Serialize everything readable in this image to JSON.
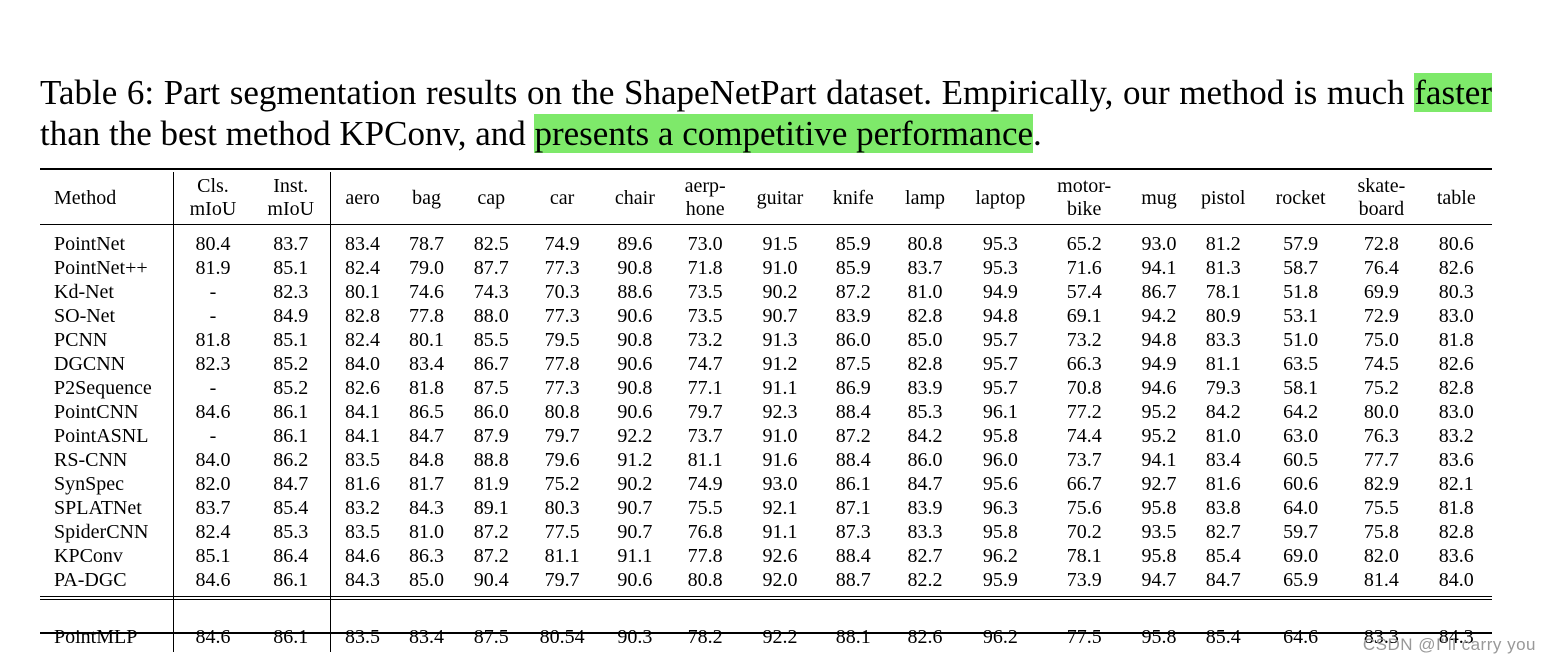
{
  "caption": {
    "part1": "Table 6: Part segmentation results on the ShapeNetPart dataset. Empirically, our method is much ",
    "highlight1": "faster",
    "part2": " than the best method KPConv, and ",
    "highlight2": "presents a competitive performance",
    "part3": "."
  },
  "colors": {
    "highlight": "#7ee96a",
    "watermark": "#999999"
  },
  "table": {
    "headers": {
      "method": "Method",
      "cls_line1": "Cls.",
      "cls_line2": "mIoU",
      "inst_line1": "Inst.",
      "inst_line2": "mIoU",
      "aero": "aero",
      "bag": "bag",
      "cap": "cap",
      "car": "car",
      "chair": "chair",
      "earphone_line1": "aerp-",
      "earphone_line2": "hone",
      "guitar": "guitar",
      "knife": "knife",
      "lamp": "lamp",
      "laptop": "laptop",
      "motorbike_line1": "motor-",
      "motorbike_line2": "bike",
      "mug": "mug",
      "pistol": "pistol",
      "rocket": "rocket",
      "skateboard_line1": "skate-",
      "skateboard_line2": "board",
      "table": "table"
    },
    "rows": [
      [
        "PointNet",
        "80.4",
        "83.7",
        "83.4",
        "78.7",
        "82.5",
        "74.9",
        "89.6",
        "73.0",
        "91.5",
        "85.9",
        "80.8",
        "95.3",
        "65.2",
        "93.0",
        "81.2",
        "57.9",
        "72.8",
        "80.6"
      ],
      [
        "PointNet++",
        "81.9",
        "85.1",
        "82.4",
        "79.0",
        "87.7",
        "77.3",
        "90.8",
        "71.8",
        "91.0",
        "85.9",
        "83.7",
        "95.3",
        "71.6",
        "94.1",
        "81.3",
        "58.7",
        "76.4",
        "82.6"
      ],
      [
        "Kd-Net",
        "-",
        "82.3",
        "80.1",
        "74.6",
        "74.3",
        "70.3",
        "88.6",
        "73.5",
        "90.2",
        "87.2",
        "81.0",
        "94.9",
        "57.4",
        "86.7",
        "78.1",
        "51.8",
        "69.9",
        "80.3"
      ],
      [
        "SO-Net",
        "-",
        "84.9",
        "82.8",
        "77.8",
        "88.0",
        "77.3",
        "90.6",
        "73.5",
        "90.7",
        "83.9",
        "82.8",
        "94.8",
        "69.1",
        "94.2",
        "80.9",
        "53.1",
        "72.9",
        "83.0"
      ],
      [
        "PCNN",
        "81.8",
        "85.1",
        "82.4",
        "80.1",
        "85.5",
        "79.5",
        "90.8",
        "73.2",
        "91.3",
        "86.0",
        "85.0",
        "95.7",
        "73.2",
        "94.8",
        "83.3",
        "51.0",
        "75.0",
        "81.8"
      ],
      [
        "DGCNN",
        "82.3",
        "85.2",
        "84.0",
        "83.4",
        "86.7",
        "77.8",
        "90.6",
        "74.7",
        "91.2",
        "87.5",
        "82.8",
        "95.7",
        "66.3",
        "94.9",
        "81.1",
        "63.5",
        "74.5",
        "82.6"
      ],
      [
        "P2Sequence",
        "-",
        "85.2",
        "82.6",
        "81.8",
        "87.5",
        "77.3",
        "90.8",
        "77.1",
        "91.1",
        "86.9",
        "83.9",
        "95.7",
        "70.8",
        "94.6",
        "79.3",
        "58.1",
        "75.2",
        "82.8"
      ],
      [
        "PointCNN",
        "84.6",
        "86.1",
        "84.1",
        "86.5",
        "86.0",
        "80.8",
        "90.6",
        "79.7",
        "92.3",
        "88.4",
        "85.3",
        "96.1",
        "77.2",
        "95.2",
        "84.2",
        "64.2",
        "80.0",
        "83.0"
      ],
      [
        "PointASNL",
        "-",
        "86.1",
        "84.1",
        "84.7",
        "87.9",
        "79.7",
        "92.2",
        "73.7",
        "91.0",
        "87.2",
        "84.2",
        "95.8",
        "74.4",
        "95.2",
        "81.0",
        "63.0",
        "76.3",
        "83.2"
      ],
      [
        "RS-CNN",
        "84.0",
        "86.2",
        "83.5",
        "84.8",
        "88.8",
        "79.6",
        "91.2",
        "81.1",
        "91.6",
        "88.4",
        "86.0",
        "96.0",
        "73.7",
        "94.1",
        "83.4",
        "60.5",
        "77.7",
        "83.6"
      ],
      [
        "SynSpec",
        "82.0",
        "84.7",
        "81.6",
        "81.7",
        "81.9",
        "75.2",
        "90.2",
        "74.9",
        "93.0",
        "86.1",
        "84.7",
        "95.6",
        "66.7",
        "92.7",
        "81.6",
        "60.6",
        "82.9",
        "82.1"
      ],
      [
        "SPLATNet",
        "83.7",
        "85.4",
        "83.2",
        "84.3",
        "89.1",
        "80.3",
        "90.7",
        "75.5",
        "92.1",
        "87.1",
        "83.9",
        "96.3",
        "75.6",
        "95.8",
        "83.8",
        "64.0",
        "75.5",
        "81.8"
      ],
      [
        "SpiderCNN",
        "82.4",
        "85.3",
        "83.5",
        "81.0",
        "87.2",
        "77.5",
        "90.7",
        "76.8",
        "91.1",
        "87.3",
        "83.3",
        "95.8",
        "70.2",
        "93.5",
        "82.7",
        "59.7",
        "75.8",
        "82.8"
      ],
      [
        "KPConv",
        "85.1",
        "86.4",
        "84.6",
        "86.3",
        "87.2",
        "81.1",
        "91.1",
        "77.8",
        "92.6",
        "88.4",
        "82.7",
        "96.2",
        "78.1",
        "95.8",
        "85.4",
        "69.0",
        "82.0",
        "83.6"
      ],
      [
        "PA-DGC",
        "84.6",
        "86.1",
        "84.3",
        "85.0",
        "90.4",
        "79.7",
        "90.6",
        "80.8",
        "92.0",
        "88.7",
        "82.2",
        "95.9",
        "73.9",
        "94.7",
        "84.7",
        "65.9",
        "81.4",
        "84.0"
      ]
    ],
    "ours": [
      "PointMLP",
      "84.6",
      "86.1",
      "83.5",
      "83.4",
      "87.5",
      "80.54",
      "90.3",
      "78.2",
      "92.2",
      "88.1",
      "82.6",
      "96.2",
      "77.5",
      "95.8",
      "85.4",
      "64.6",
      "83.3",
      "84.3"
    ]
  },
  "watermark": "CSDN @I\"ll  carry  you"
}
